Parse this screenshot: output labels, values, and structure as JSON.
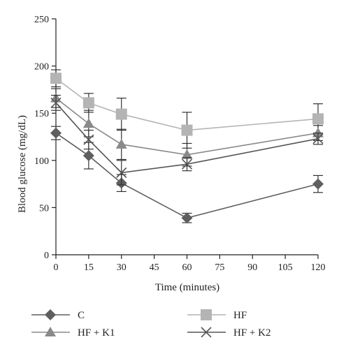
{
  "chart_data": {
    "type": "line",
    "title": "",
    "xlabel": "Time (minutes)",
    "ylabel": "Blood glucose (mg/dL)",
    "x": [
      0,
      15,
      30,
      60,
      120
    ],
    "xlim": [
      0,
      120
    ],
    "ylim": [
      0,
      250
    ],
    "xticks": [
      0,
      15,
      30,
      45,
      60,
      75,
      90,
      105,
      120
    ],
    "yticks": [
      0,
      50,
      100,
      150,
      200,
      250
    ],
    "grid": false,
    "legend": "bottom",
    "series": [
      {
        "name": "C",
        "marker": "diamond",
        "color": "#5f5f5f",
        "values": [
          129,
          105,
          76,
          39,
          75
        ],
        "errors": [
          7,
          14,
          9,
          5,
          9
        ]
      },
      {
        "name": "HF",
        "marker": "square",
        "color": "#b4b4b4",
        "values": [
          187,
          161,
          149,
          132,
          144
        ],
        "errors": [
          9,
          10,
          17,
          19,
          16
        ]
      },
      {
        "name": "HF + K1",
        "marker": "triangle",
        "color": "#8a8a8a",
        "values": [
          166,
          139,
          117,
          106,
          129
        ],
        "errors": [
          10,
          14,
          16,
          12,
          8
        ]
      },
      {
        "name": "HF + K2",
        "marker": "x",
        "color": "#555555",
        "values": [
          161,
          122,
          87,
          96,
          123
        ],
        "errors": [
          8,
          10,
          13,
          7,
          6
        ]
      }
    ]
  }
}
